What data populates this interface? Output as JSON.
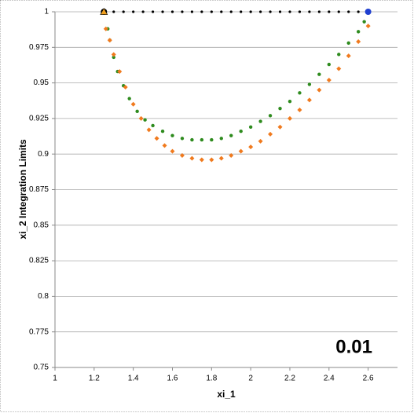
{
  "chart_data": {
    "type": "scatter",
    "xlabel": "xi_1",
    "ylabel": "xi_2 Integration Limits",
    "annotation": "0.01",
    "xlim": [
      1,
      2.75
    ],
    "xticks": [
      1,
      1.2,
      1.4,
      1.6,
      1.8,
      2,
      2.2,
      2.4,
      2.6
    ],
    "ylim": [
      0.75,
      1
    ],
    "yticks": [
      0.75,
      0.775,
      0.8,
      0.825,
      0.85,
      0.875,
      0.9,
      0.925,
      0.95,
      0.975,
      1
    ],
    "grid": true,
    "series": [
      {
        "color": "#000000",
        "marker": "circle",
        "size": 1.6,
        "x": [
          1.25,
          1.3,
          1.35,
          1.4,
          1.45,
          1.5,
          1.55,
          1.6,
          1.65,
          1.7,
          1.75,
          1.8,
          1.85,
          1.9,
          1.95,
          2,
          2.05,
          2.1,
          2.15,
          2.2,
          2.25,
          2.3,
          2.35,
          2.4,
          2.45,
          2.5,
          2.55,
          2.6
        ],
        "values": [
          1,
          1,
          1,
          1,
          1,
          1,
          1,
          1,
          1,
          1,
          1,
          1,
          1,
          1,
          1,
          1,
          1,
          1,
          1,
          1,
          1,
          1,
          1,
          1,
          1,
          1,
          1,
          1
        ]
      },
      {
        "color": "#2e8b1e",
        "marker": "circle",
        "size": 2.2,
        "x": [
          1.27,
          1.28,
          1.3,
          1.32,
          1.35,
          1.38,
          1.42,
          1.46,
          1.5,
          1.55,
          1.6,
          1.65,
          1.7,
          1.75,
          1.8,
          1.85,
          1.9,
          1.95,
          2,
          2.05,
          2.1,
          2.15,
          2.2,
          2.25,
          2.3,
          2.35,
          2.4,
          2.45,
          2.5,
          2.55,
          2.58
        ],
        "values": [
          0.988,
          0.98,
          0.968,
          0.958,
          0.948,
          0.939,
          0.93,
          0.924,
          0.92,
          0.916,
          0.913,
          0.911,
          0.91,
          0.91,
          0.91,
          0.911,
          0.913,
          0.916,
          0.919,
          0.923,
          0.927,
          0.932,
          0.937,
          0.943,
          0.949,
          0.956,
          0.963,
          0.97,
          0.978,
          0.986,
          0.993
        ]
      },
      {
        "color": "#f07a1e",
        "marker": "diamond",
        "size": 3,
        "x": [
          1.26,
          1.28,
          1.3,
          1.33,
          1.36,
          1.4,
          1.44,
          1.48,
          1.52,
          1.56,
          1.6,
          1.65,
          1.7,
          1.75,
          1.8,
          1.85,
          1.9,
          1.95,
          2,
          2.05,
          2.1,
          2.15,
          2.2,
          2.25,
          2.3,
          2.35,
          2.4,
          2.45,
          2.5,
          2.55,
          2.6
        ],
        "values": [
          0.988,
          0.98,
          0.97,
          0.958,
          0.947,
          0.935,
          0.925,
          0.917,
          0.911,
          0.906,
          0.902,
          0.899,
          0.897,
          0.896,
          0.896,
          0.897,
          0.899,
          0.902,
          0.905,
          0.909,
          0.914,
          0.919,
          0.925,
          0.931,
          0.938,
          0.945,
          0.952,
          0.96,
          0.969,
          0.979,
          0.99
        ]
      },
      {
        "color": "#000000",
        "marker": "circle",
        "size": 4,
        "x": [
          1.25
        ],
        "values": [
          1
        ]
      },
      {
        "color": "#f0a020",
        "marker": "triangle",
        "size": 4.5,
        "x": [
          1.25
        ],
        "values": [
          1
        ]
      },
      {
        "color": "#1f3fd0",
        "marker": "circle",
        "size": 4,
        "x": [
          2.6
        ],
        "values": [
          1
        ]
      }
    ]
  }
}
